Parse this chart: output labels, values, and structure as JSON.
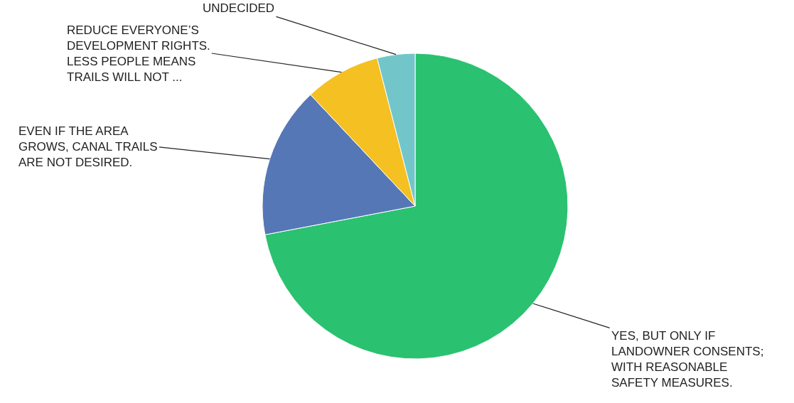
{
  "chart_data": {
    "type": "pie",
    "categories": [
      "YES, BUT ONLY IF LANDOWNER CONSENTS; WITH REASONABLE SAFETY MEASURES.",
      "EVEN IF THE AREA GROWS, CANAL TRAILS ARE NOT DESIRED.",
      "REDUCE EVERYONE’S DEVELOPMENT RIGHTS. LESS PEOPLE MEANS TRAILS WILL NOT ...",
      "UNDECIDED"
    ],
    "values": [
      72,
      16,
      8,
      4
    ],
    "colors": [
      "#2ac170",
      "#5677b6",
      "#f4c022",
      "#72c6c9"
    ],
    "legend": false
  }
}
